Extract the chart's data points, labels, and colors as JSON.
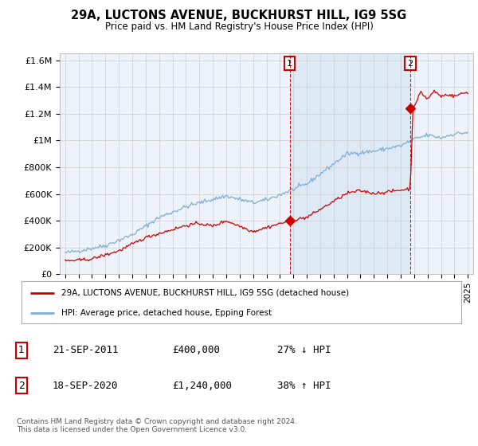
{
  "title": "29A, LUCTONS AVENUE, BUCKHURST HILL, IG9 5SG",
  "subtitle": "Price paid vs. HM Land Registry's House Price Index (HPI)",
  "ylabel_ticks": [
    "£0",
    "£200K",
    "£400K",
    "£600K",
    "£800K",
    "£1M",
    "£1.2M",
    "£1.4M",
    "£1.6M"
  ],
  "ytick_values": [
    0,
    200000,
    400000,
    600000,
    800000,
    1000000,
    1200000,
    1400000,
    1600000
  ],
  "ylim": [
    0,
    1650000
  ],
  "sale1_year": 2011.73,
  "sale1_price": 400000,
  "sale1_label": "1",
  "sale2_year": 2020.72,
  "sale2_price": 1240000,
  "sale2_label": "2",
  "legend_entries": [
    "29A, LUCTONS AVENUE, BUCKHURST HILL, IG9 5SG (detached house)",
    "HPI: Average price, detached house, Epping Forest"
  ],
  "table_rows": [
    [
      "1",
      "21-SEP-2011",
      "£400,000",
      "27% ↓ HPI"
    ],
    [
      "2",
      "18-SEP-2020",
      "£1,240,000",
      "38% ↑ HPI"
    ]
  ],
  "footnote": "Contains HM Land Registry data © Crown copyright and database right 2024.\nThis data is licensed under the Open Government Licence v3.0.",
  "red_color": "#cc0000",
  "blue_color": "#7eaed4",
  "shade_color": "#dce8f5",
  "background_color": "#eef3fb",
  "plot_bg": "#ffffff",
  "grid_color": "#cccccc"
}
